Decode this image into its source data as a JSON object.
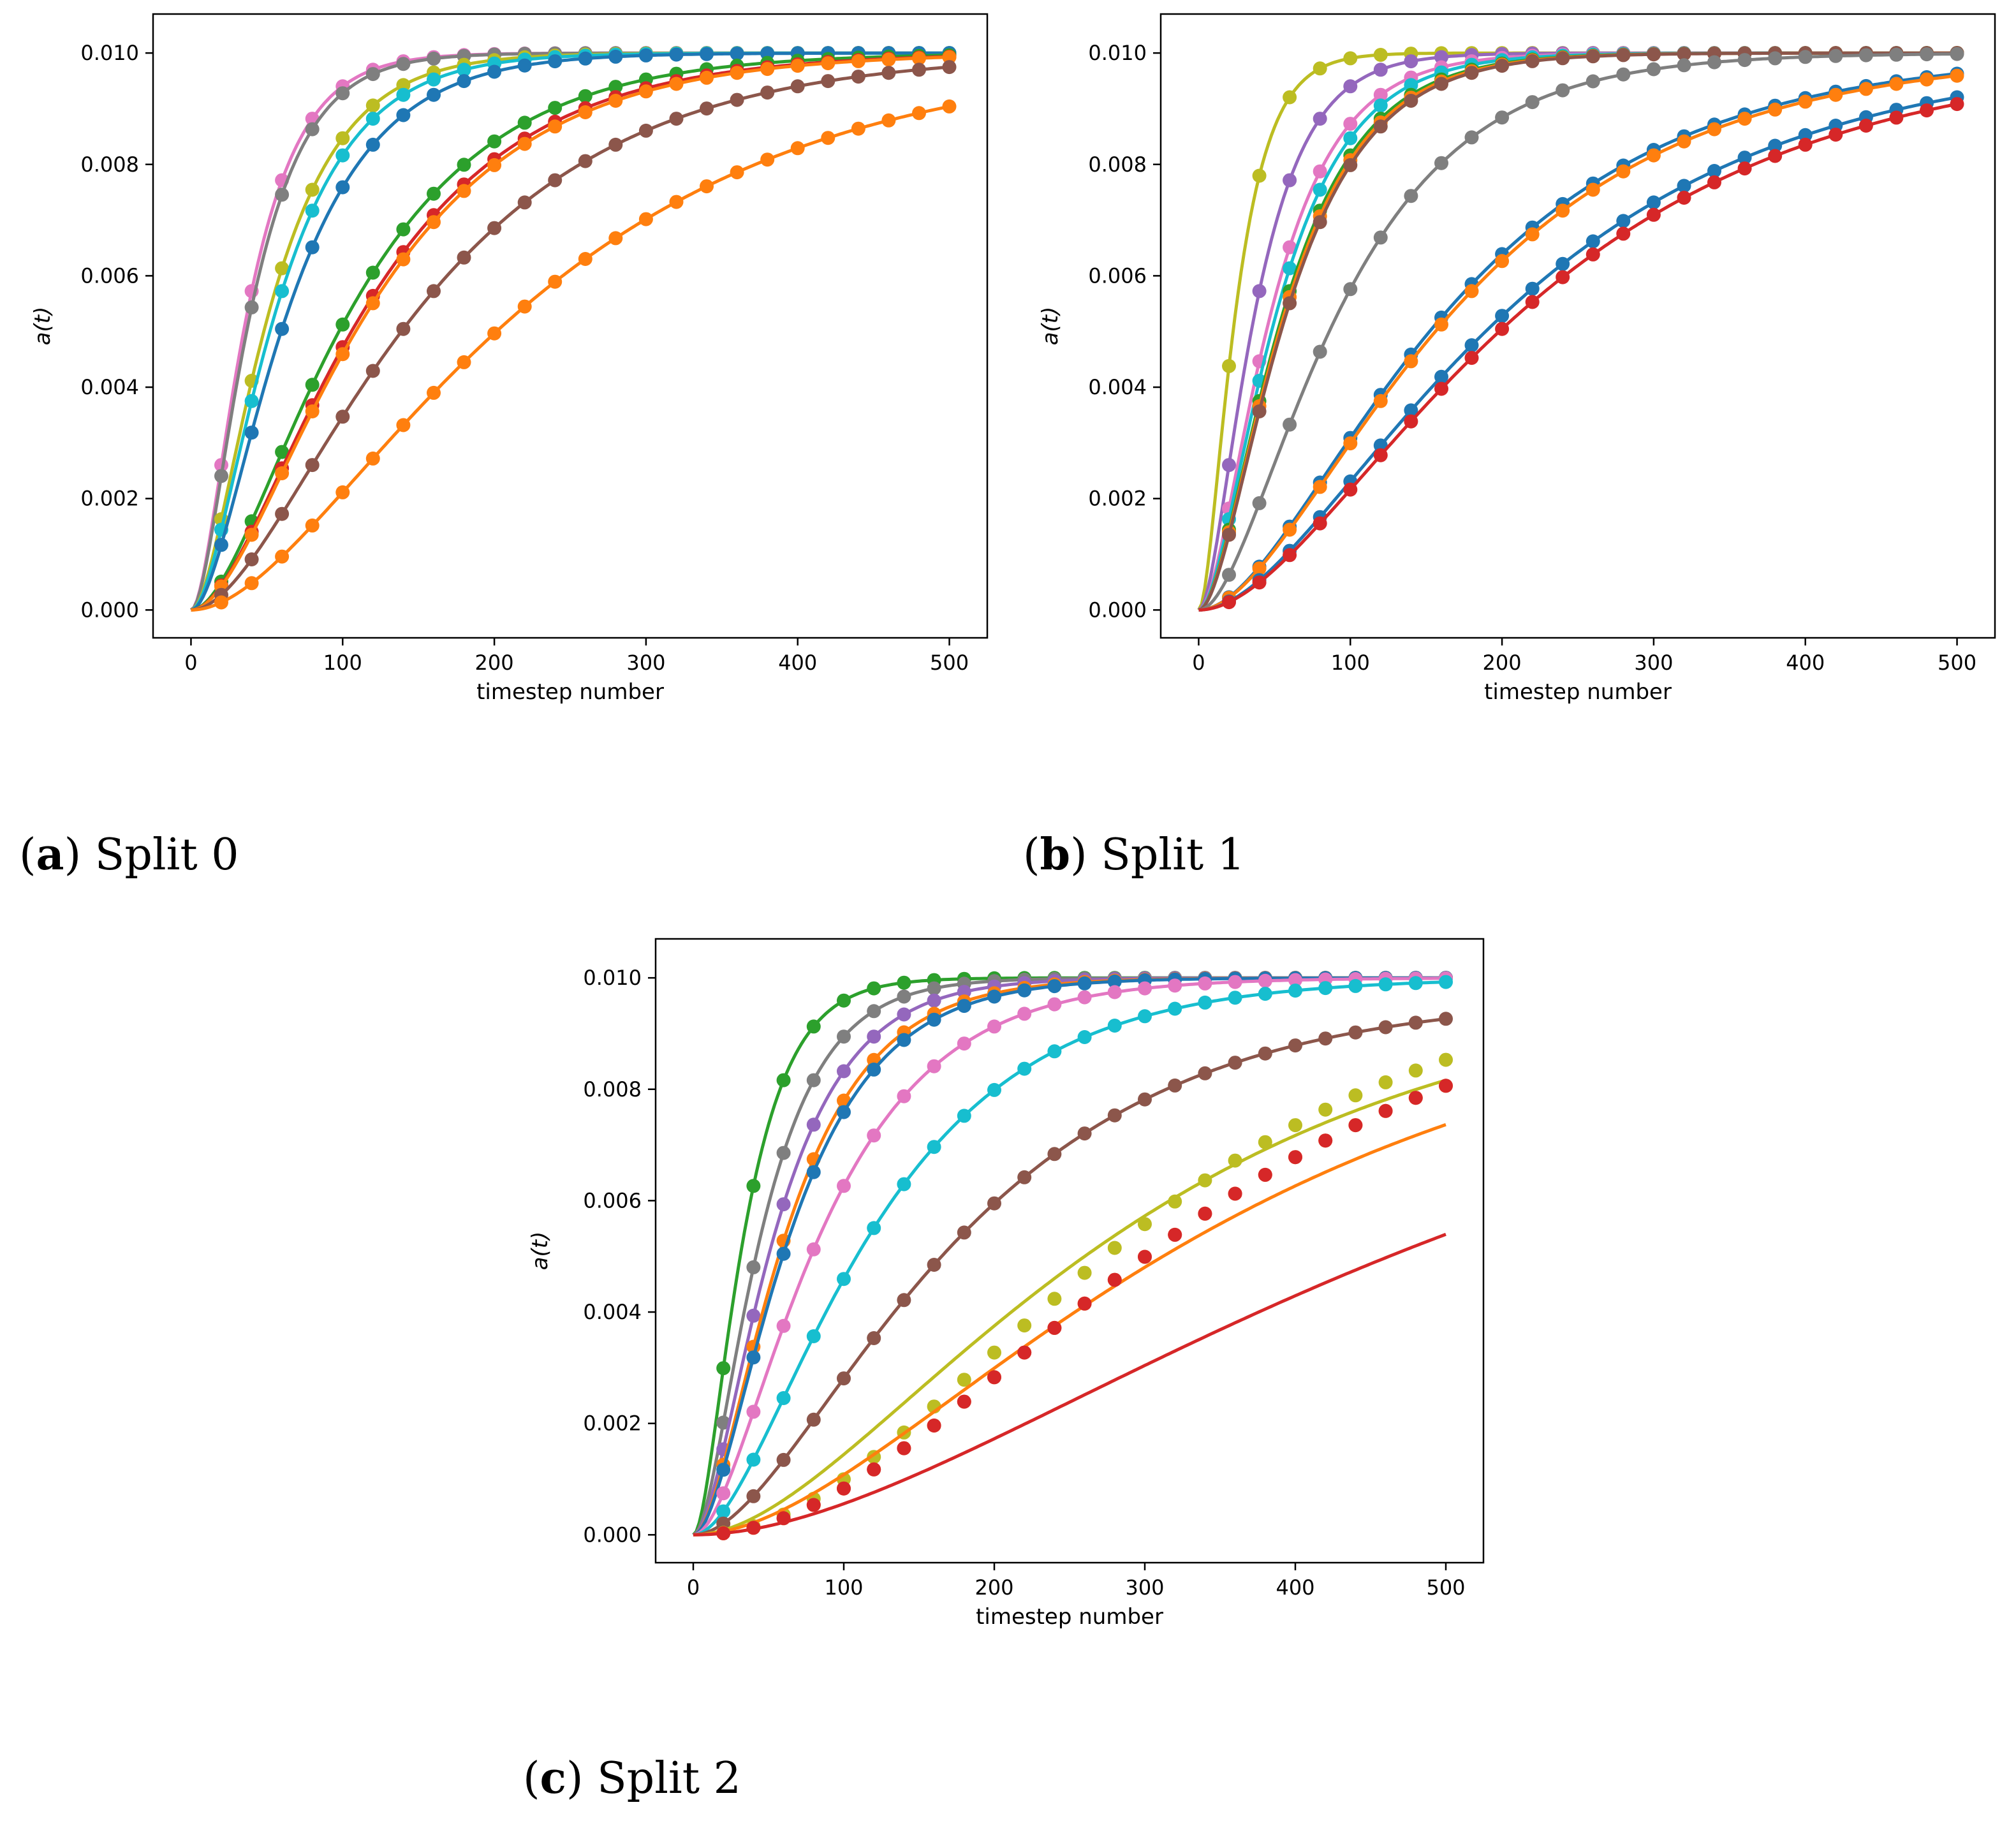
{
  "chart_data": [
    {
      "type": "line",
      "panel_id": "a",
      "caption_letter": "a",
      "caption_text": "Split 0",
      "xlabel": "timestep number",
      "ylabel": "a(t)",
      "xlim": [
        -25,
        525
      ],
      "ylim": [
        -0.0005,
        0.0107
      ],
      "x_ticks": [
        0,
        100,
        200,
        300,
        400,
        500
      ],
      "y_ticks": [
        0.0,
        0.002,
        0.004,
        0.006,
        0.008,
        0.01
      ],
      "x_tick_labels": [
        "0",
        "100",
        "200",
        "300",
        "400",
        "500"
      ],
      "y_tick_labels": [
        "0.000",
        "0.002",
        "0.004",
        "0.006",
        "0.008",
        "0.010"
      ],
      "series": [
        {
          "name": "pink",
          "color": "#e377c2",
          "A": 0.01,
          "rate": 0.036,
          "exp": 2.0
        },
        {
          "name": "gray",
          "color": "#7f7f7f",
          "A": 0.01,
          "rate": 0.034,
          "exp": 2.0
        },
        {
          "name": "olive",
          "color": "#bcbd22",
          "A": 0.01,
          "rate": 0.026,
          "exp": 2.0
        },
        {
          "name": "cyan",
          "color": "#17becf",
          "A": 0.01,
          "rate": 0.024,
          "exp": 2.0
        },
        {
          "name": "blue",
          "color": "#1f77b4",
          "A": 0.01,
          "rate": 0.021,
          "exp": 2.0
        },
        {
          "name": "green",
          "color": "#2ca02c",
          "A": 0.01,
          "rate": 0.0128,
          "exp": 2.0
        },
        {
          "name": "red",
          "color": "#d62728",
          "A": 0.01,
          "rate": 0.0118,
          "exp": 2.0
        },
        {
          "name": "orange-1",
          "color": "#ff7f0e",
          "A": 0.01,
          "rate": 0.0115,
          "exp": 2.0
        },
        {
          "name": "brown",
          "color": "#8c564b",
          "A": 0.01,
          "rate": 0.009,
          "exp": 2.0
        },
        {
          "name": "orange-2",
          "color": "#ff7f0e",
          "A": 0.01,
          "rate": 0.0062,
          "exp": 2.0
        }
      ]
    },
    {
      "type": "line",
      "panel_id": "b",
      "caption_letter": "b",
      "caption_text": "Split 1",
      "xlabel": "timestep number",
      "ylabel": "a(t)",
      "xlim": [
        -25,
        525
      ],
      "ylim": [
        -0.0005,
        0.0107
      ],
      "x_ticks": [
        0,
        100,
        200,
        300,
        400,
        500
      ],
      "y_ticks": [
        0.0,
        0.002,
        0.004,
        0.006,
        0.008,
        0.01
      ],
      "x_tick_labels": [
        "0",
        "100",
        "200",
        "300",
        "400",
        "500"
      ],
      "y_tick_labels": [
        "0.000",
        "0.002",
        "0.004",
        "0.006",
        "0.008",
        "0.010"
      ],
      "series": [
        {
          "name": "olive",
          "color": "#bcbd22",
          "A": 0.01,
          "rate": 0.055,
          "exp": 2.0
        },
        {
          "name": "purple",
          "color": "#9467bd",
          "A": 0.01,
          "rate": 0.036,
          "exp": 2.0
        },
        {
          "name": "pink",
          "color": "#e377c2",
          "A": 0.01,
          "rate": 0.028,
          "exp": 2.0
        },
        {
          "name": "cyan",
          "color": "#17becf",
          "A": 0.01,
          "rate": 0.026,
          "exp": 2.0
        },
        {
          "name": "green",
          "color": "#2ca02c",
          "A": 0.01,
          "rate": 0.024,
          "exp": 2.0
        },
        {
          "name": "orange-1",
          "color": "#ff7f0e",
          "A": 0.01,
          "rate": 0.0235,
          "exp": 2.0
        },
        {
          "name": "brown",
          "color": "#8c564b",
          "A": 0.01,
          "rate": 0.023,
          "exp": 2.0
        },
        {
          "name": "gray",
          "color": "#7f7f7f",
          "A": 0.01,
          "rate": 0.0145,
          "exp": 2.0
        },
        {
          "name": "blue-1",
          "color": "#1f77b4",
          "A": 0.01,
          "rate": 0.0082,
          "exp": 2.0
        },
        {
          "name": "orange-2",
          "color": "#ff7f0e",
          "A": 0.01,
          "rate": 0.008,
          "exp": 2.0
        },
        {
          "name": "blue-2",
          "color": "#1f77b4",
          "A": 0.01,
          "rate": 0.0066,
          "exp": 2.0
        },
        {
          "name": "red",
          "color": "#d62728",
          "A": 0.01,
          "rate": 0.0063,
          "exp": 2.0
        }
      ]
    },
    {
      "type": "line",
      "panel_id": "c",
      "caption_letter": "c",
      "caption_text": "Split 2",
      "xlabel": "timestep number",
      "ylabel": "a(t)",
      "xlim": [
        -25,
        525
      ],
      "ylim": [
        -0.0005,
        0.0107
      ],
      "x_ticks": [
        0,
        100,
        200,
        300,
        400,
        500
      ],
      "y_ticks": [
        0.0,
        0.002,
        0.004,
        0.006,
        0.008,
        0.01
      ],
      "x_tick_labels": [
        "0",
        "100",
        "200",
        "300",
        "400",
        "500"
      ],
      "y_tick_labels": [
        "0.000",
        "0.002",
        "0.004",
        "0.006",
        "0.008",
        "0.010"
      ],
      "series": [
        {
          "name": "green",
          "color": "#2ca02c",
          "A": 0.01,
          "rate": 0.04,
          "exp": 2.0
        },
        {
          "name": "gray",
          "color": "#7f7f7f",
          "A": 0.01,
          "rate": 0.03,
          "exp": 2.0
        },
        {
          "name": "purple",
          "color": "#9467bd",
          "A": 0.01,
          "rate": 0.025,
          "exp": 2.0
        },
        {
          "name": "orange-1",
          "color": "#ff7f0e",
          "A": 0.01,
          "rate": 0.022,
          "exp": 2.0
        },
        {
          "name": "blue",
          "color": "#1f77b4",
          "A": 0.01,
          "rate": 0.021,
          "exp": 2.0
        },
        {
          "name": "pink",
          "color": "#e377c2",
          "A": 0.01,
          "rate": 0.016,
          "exp": 2.0
        },
        {
          "name": "cyan",
          "color": "#17becf",
          "A": 0.01,
          "rate": 0.0115,
          "exp": 2.0
        },
        {
          "name": "brown",
          "color": "#8c564b",
          "A": 0.0097,
          "rate": 0.0078,
          "exp": 2.0
        },
        {
          "name": "olive",
          "color": "#bcbd22",
          "A": 0.01,
          "rate": 0.0048,
          "exp": 2.0,
          "dotRate": 0.0044,
          "dotExp": 2.3,
          "dotStart": 20
        },
        {
          "name": "orange-2",
          "color": "#ff7f0e",
          "A": 0.01,
          "rate": 0.004,
          "exp": 2.0,
          "dotRate": 0.004,
          "dotExp": 2.3,
          "dotStart": 20
        },
        {
          "name": "red",
          "color": "#d62728",
          "A": 0.01,
          "rate": 0.0027,
          "exp": 2.0,
          "dotRate": 0.004,
          "dotExp": 2.3,
          "dotStart": 20,
          "noEndDot": false
        }
      ]
    }
  ]
}
